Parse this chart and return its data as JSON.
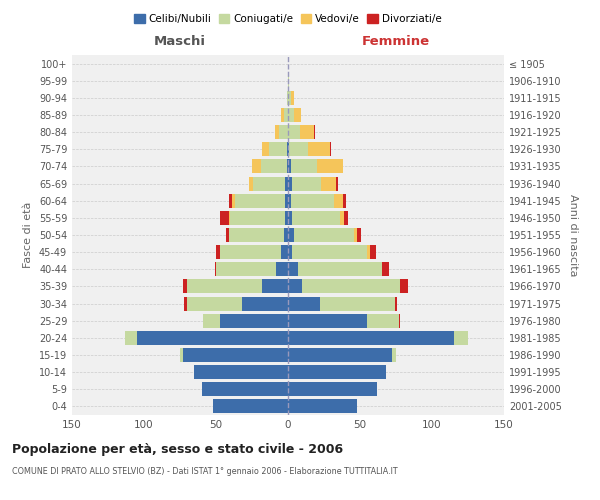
{
  "age_groups": [
    "0-4",
    "5-9",
    "10-14",
    "15-19",
    "20-24",
    "25-29",
    "30-34",
    "35-39",
    "40-44",
    "45-49",
    "50-54",
    "55-59",
    "60-64",
    "65-69",
    "70-74",
    "75-79",
    "80-84",
    "85-89",
    "90-94",
    "95-99",
    "100+"
  ],
  "birth_years": [
    "2001-2005",
    "1996-2000",
    "1991-1995",
    "1986-1990",
    "1981-1985",
    "1976-1980",
    "1971-1975",
    "1966-1970",
    "1961-1965",
    "1956-1960",
    "1951-1955",
    "1946-1950",
    "1941-1945",
    "1936-1940",
    "1931-1935",
    "1926-1930",
    "1921-1925",
    "1916-1920",
    "1911-1915",
    "1906-1910",
    "≤ 1905"
  ],
  "male": {
    "celibi": [
      52,
      60,
      65,
      73,
      105,
      47,
      32,
      18,
      8,
      5,
      3,
      2,
      2,
      2,
      1,
      1,
      0,
      0,
      0,
      0,
      0
    ],
    "coniugati": [
      0,
      0,
      0,
      2,
      8,
      12,
      38,
      52,
      42,
      42,
      38,
      38,
      35,
      22,
      18,
      12,
      6,
      3,
      1,
      0,
      0
    ],
    "vedovi": [
      0,
      0,
      0,
      0,
      0,
      0,
      0,
      0,
      0,
      0,
      0,
      1,
      2,
      3,
      6,
      5,
      3,
      2,
      0,
      0,
      0
    ],
    "divorziati": [
      0,
      0,
      0,
      0,
      0,
      0,
      2,
      3,
      1,
      3,
      2,
      6,
      2,
      0,
      0,
      0,
      0,
      0,
      0,
      0,
      0
    ]
  },
  "female": {
    "nubili": [
      48,
      62,
      68,
      72,
      115,
      55,
      22,
      10,
      7,
      3,
      4,
      3,
      2,
      3,
      2,
      1,
      0,
      0,
      0,
      0,
      0
    ],
    "coniugate": [
      0,
      0,
      0,
      3,
      10,
      22,
      52,
      68,
      58,
      52,
      42,
      33,
      30,
      20,
      18,
      13,
      8,
      4,
      2,
      1,
      0
    ],
    "vedove": [
      0,
      0,
      0,
      0,
      0,
      0,
      0,
      0,
      0,
      2,
      2,
      3,
      6,
      10,
      18,
      15,
      10,
      5,
      2,
      0,
      0
    ],
    "divorziate": [
      0,
      0,
      0,
      0,
      0,
      1,
      2,
      5,
      5,
      4,
      3,
      3,
      2,
      2,
      0,
      1,
      1,
      0,
      0,
      0,
      0
    ]
  },
  "colors": {
    "celibi": "#3d6daa",
    "coniugati": "#c5d9a0",
    "vedovi": "#f5c55a",
    "divorziati": "#cc2222"
  },
  "title": "Popolazione per età, sesso e stato civile - 2006",
  "subtitle": "COMUNE DI PRATO ALLO STELVIO (BZ) - Dati ISTAT 1° gennaio 2006 - Elaborazione TUTTITALIA.IT",
  "xlabel_left": "Maschi",
  "xlabel_right": "Femmine",
  "ylabel_left": "Fasce di età",
  "ylabel_right": "Anni di nascita",
  "xlim": 150,
  "bg_color": "#ffffff",
  "plot_bg": "#f0f0f0",
  "grid_color": "#cccccc",
  "legend_labels": [
    "Celibi/Nubili",
    "Coniugati/e",
    "Vedovi/e",
    "Divorziati/e"
  ]
}
